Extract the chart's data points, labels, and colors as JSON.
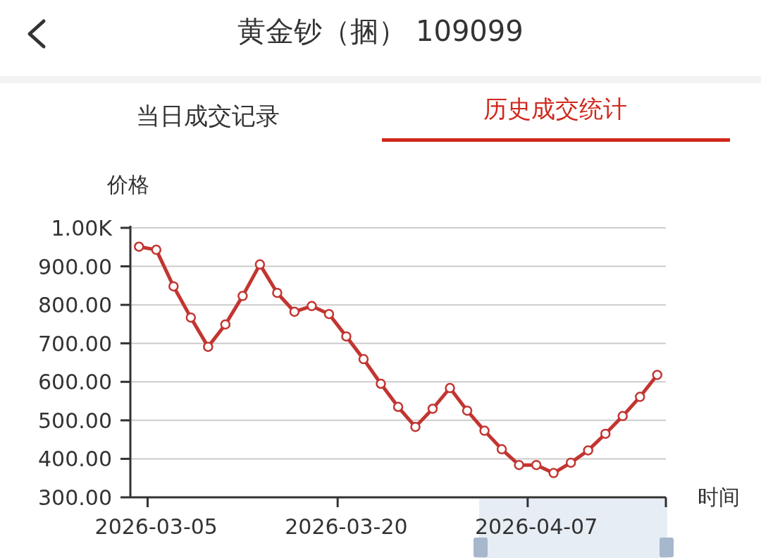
{
  "chart_data": {
    "type": "line",
    "title": "黄金钞（捆） 109099",
    "annotations": [
      "当日成交记录",
      "历史成交统计"
    ],
    "xlabel": "时间",
    "ylabel": "价格",
    "categories": [
      null,
      "2026-03-05",
      null,
      null,
      null,
      null,
      null,
      null,
      null,
      null,
      null,
      null,
      "2026-03-20",
      null,
      null,
      null,
      null,
      null,
      null,
      null,
      null,
      null,
      null,
      "2026-04-07",
      null,
      null,
      null,
      null,
      null,
      null,
      null
    ],
    "series": [
      {
        "color": "#c23531",
        "values": [
          951,
          943,
          848,
          767,
          691,
          749,
          823,
          905,
          831,
          782,
          797,
          776,
          718,
          659,
          595,
          535,
          483,
          530,
          584,
          525,
          473,
          425,
          384,
          384,
          363,
          390,
          422,
          465,
          511,
          561,
          618
        ]
      }
    ],
    "ylim": [
      300,
      1000
    ],
    "yticks": [
      {
        "value": 300,
        "label": "300.00"
      },
      {
        "value": 400,
        "label": "400.00"
      },
      {
        "value": 500,
        "label": "500.00"
      },
      {
        "value": 600,
        "label": "600.00"
      },
      {
        "value": 700,
        "label": "700.00"
      },
      {
        "value": 800,
        "label": "800.00"
      },
      {
        "value": 900,
        "label": "900.00"
      },
      {
        "value": 1000,
        "label": "1.00K"
      }
    ],
    "grid": "y",
    "marker": "circle",
    "line_style": "solid"
  }
}
